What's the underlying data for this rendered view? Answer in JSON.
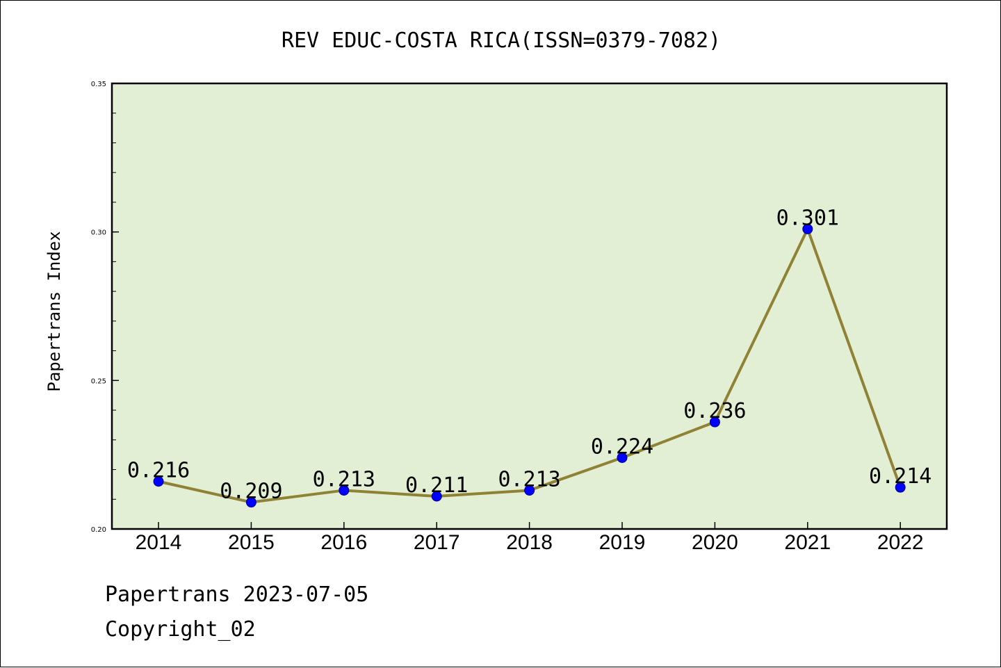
{
  "chart_data": {
    "type": "line",
    "title": "REV EDUC-COSTA RICA(ISSN=0379-7082)",
    "xlabel": "",
    "ylabel": "Papertrans Index",
    "categories": [
      "2014",
      "2015",
      "2016",
      "2017",
      "2018",
      "2019",
      "2020",
      "2021",
      "2022"
    ],
    "values": [
      0.216,
      0.209,
      0.213,
      0.211,
      0.213,
      0.224,
      0.236,
      0.301,
      0.214
    ],
    "data_labels": [
      "0.216",
      "0.209",
      "0.213",
      "0.211",
      "0.213",
      "0.224",
      "0.236",
      "0.301",
      "0.214"
    ],
    "ylim": [
      0.2,
      0.35
    ],
    "y_ticks": [
      "0.20",
      "0.25",
      "0.30",
      "0.35"
    ],
    "y_tick_values": [
      0.2,
      0.25,
      0.3,
      0.35
    ],
    "grid": false,
    "colors": {
      "plot_background": "#e2efd5",
      "line": "#8f8234",
      "marker": "#0000ff"
    }
  },
  "footer": {
    "line1": "Papertrans 2023-07-05",
    "line2": "Copyright_02"
  }
}
